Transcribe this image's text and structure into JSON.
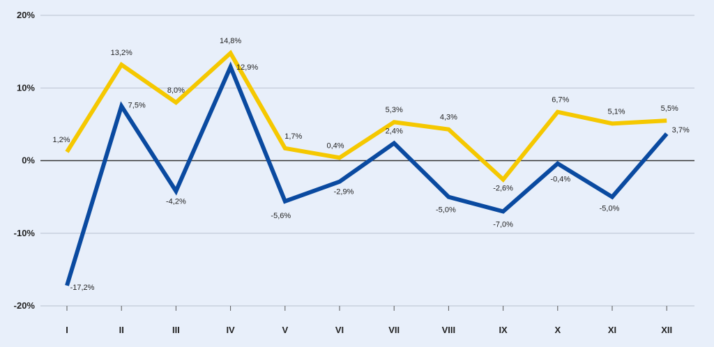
{
  "chart_data": {
    "type": "line",
    "title": "",
    "xlabel": "",
    "ylabel": "",
    "ylim": [
      -20,
      20
    ],
    "y_ticks": [
      -20,
      -10,
      0,
      10,
      20
    ],
    "y_tick_labels": [
      "-20%",
      "-10%",
      "0%",
      "10%",
      "20%"
    ],
    "grid": true,
    "legend": "none",
    "categories": [
      "I",
      "II",
      "III",
      "IV",
      "V",
      "VI",
      "VII",
      "VIII",
      "IX",
      "X",
      "XI",
      "XII"
    ],
    "series": [
      {
        "color": "#f5c800",
        "values": [
          1.2,
          13.2,
          8.0,
          14.8,
          1.7,
          0.4,
          5.3,
          4.3,
          -2.6,
          6.7,
          5.1,
          5.5
        ],
        "labels": [
          "1,2%",
          "13,2%",
          "8,0%",
          "14,8%",
          "1,7%",
          "0,4%",
          "5,3%",
          "4,3%",
          "-2,6%",
          "6,7%",
          "5,1%",
          "5,5%"
        ]
      },
      {
        "color": "#0a4aa0",
        "values": [
          -17.2,
          7.5,
          -4.2,
          12.9,
          -5.6,
          -2.9,
          2.4,
          -5.0,
          -7.0,
          -0.4,
          -5.0,
          3.7
        ],
        "labels": [
          "-17,2%",
          "7,5%",
          "-4,2%",
          "12,9%",
          "-5,6%",
          "-2,9%",
          "2,4%",
          "-5,0%",
          "-7,0%",
          "-0,4%",
          "-5,0%",
          "3,7%"
        ]
      }
    ]
  }
}
